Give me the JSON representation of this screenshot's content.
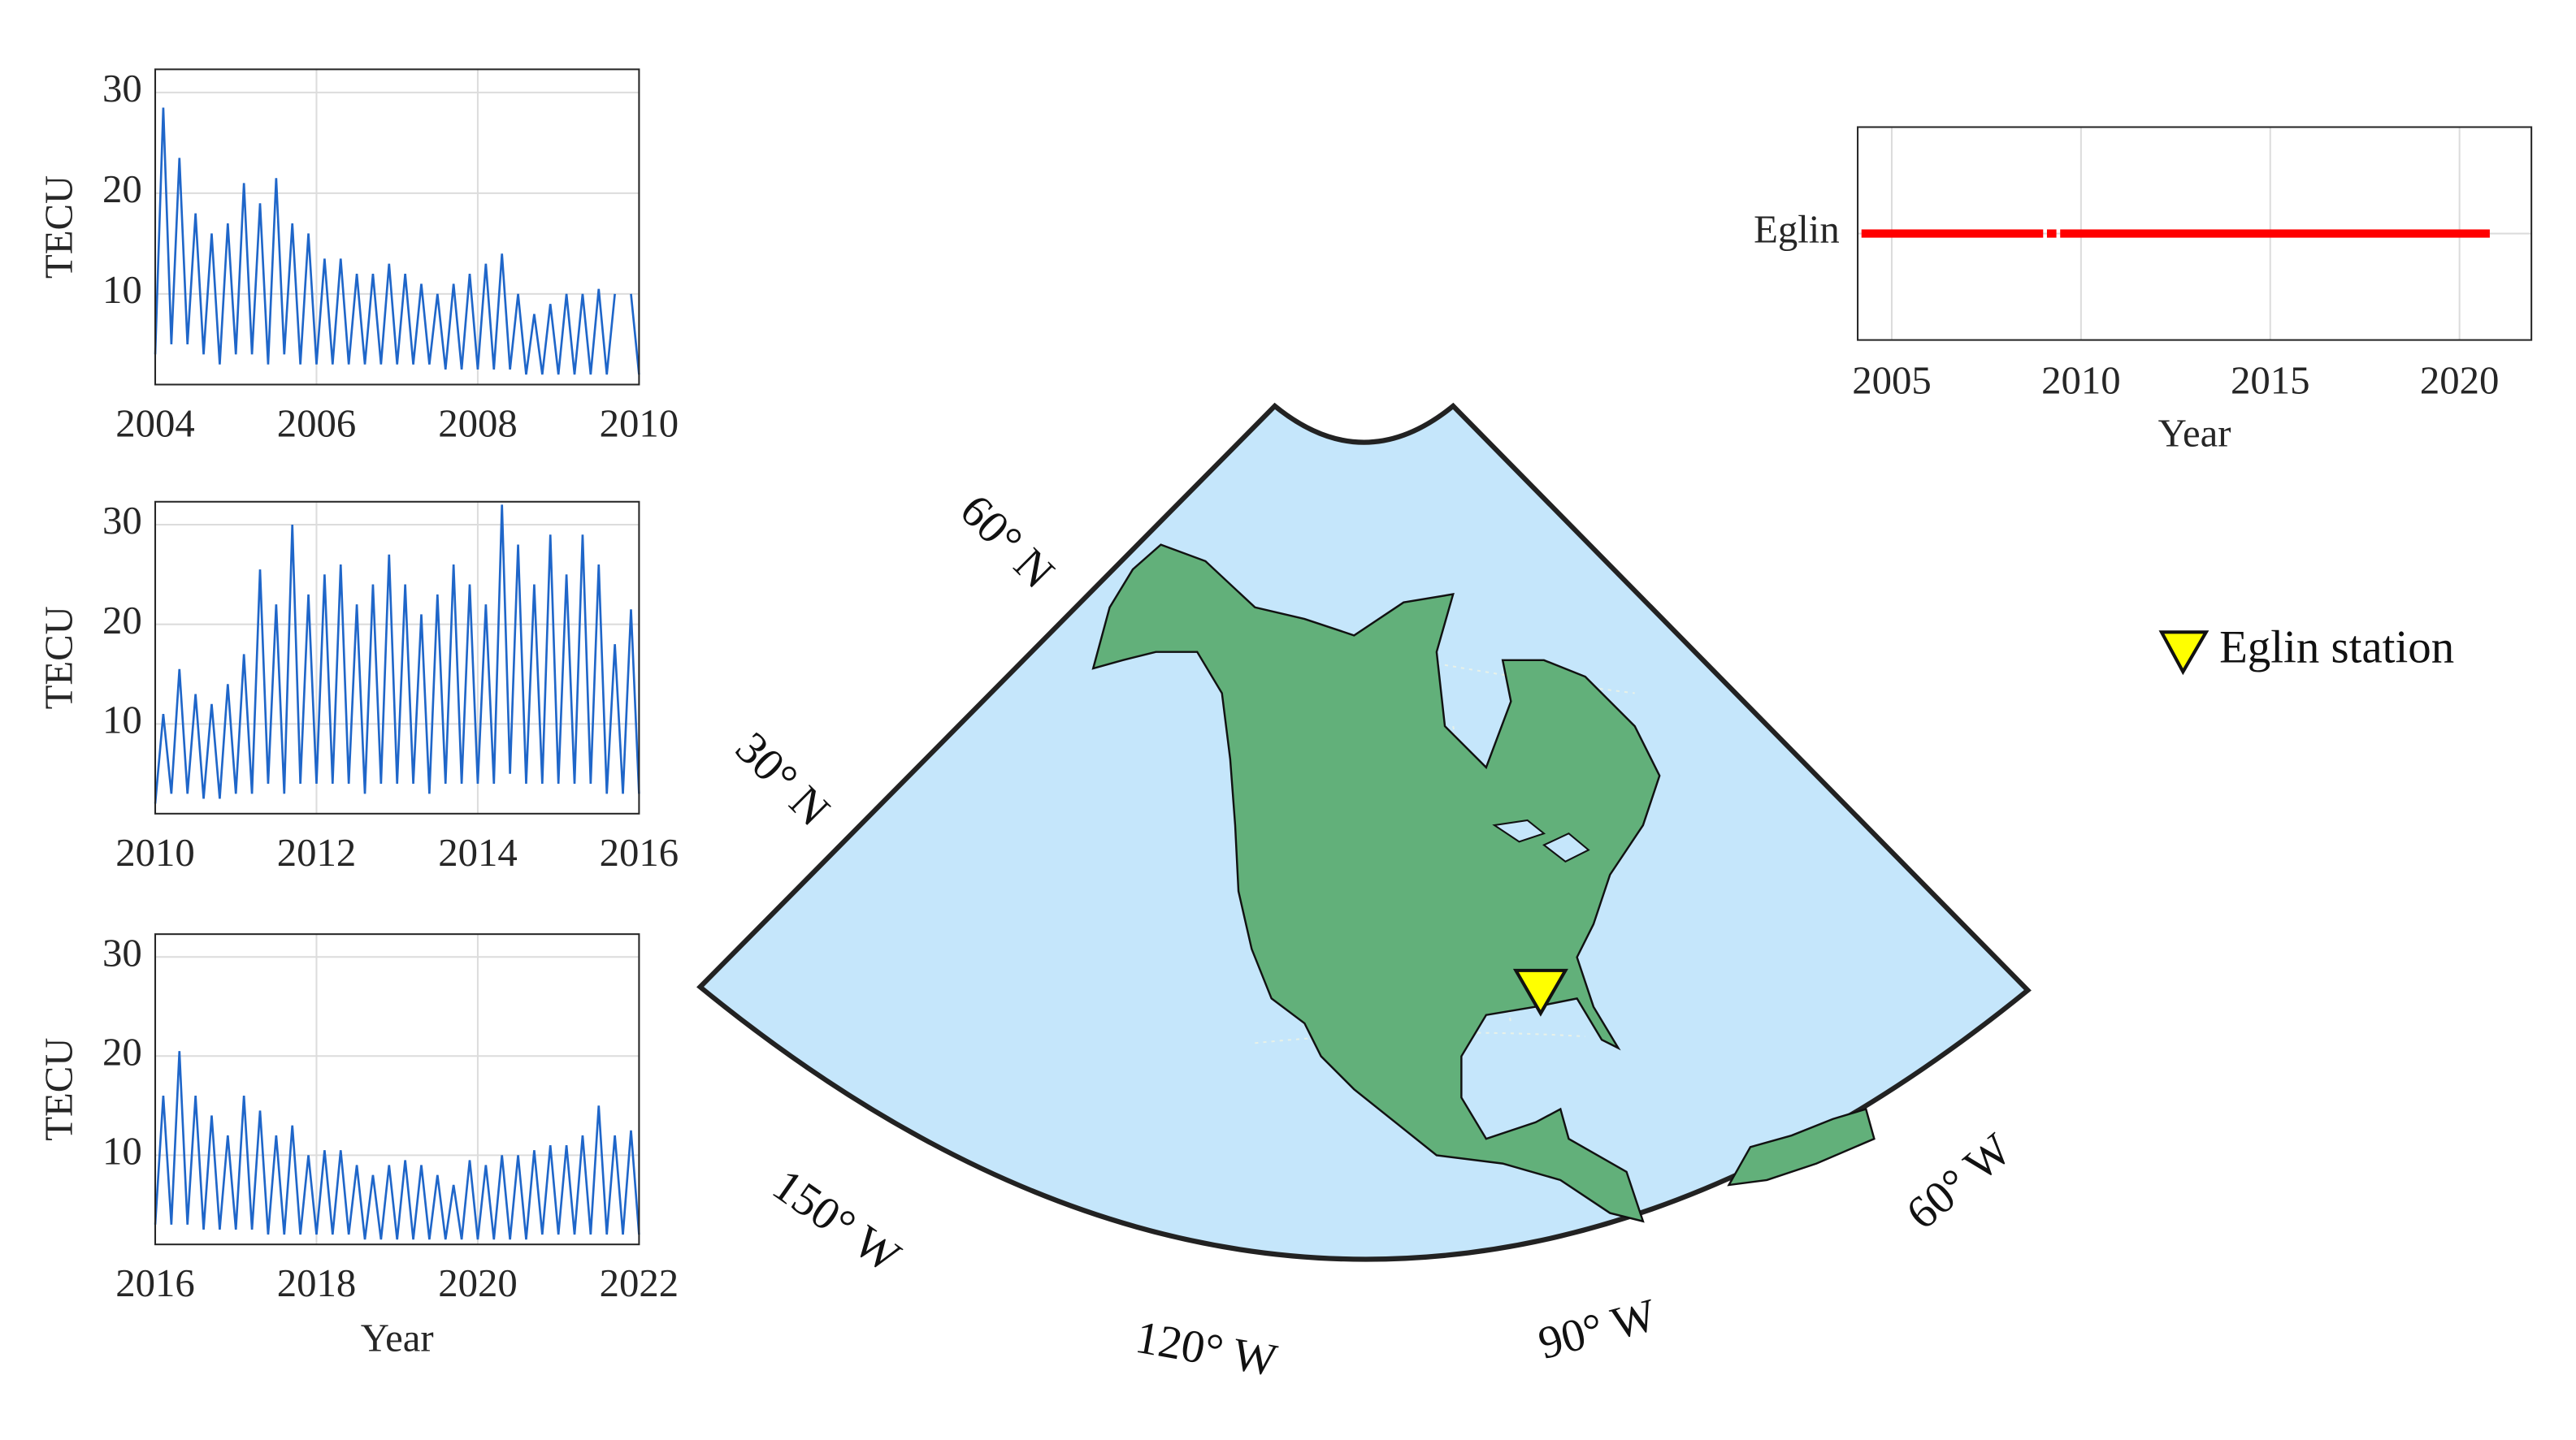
{
  "chart_data": [
    {
      "type": "line",
      "ylabel": "TECU",
      "color": "#1f66c9",
      "x": [
        2004,
        2004.1,
        2004.2,
        2004.3,
        2004.4,
        2004.5,
        2004.6,
        2004.7,
        2004.8,
        2004.9,
        2005,
        2005.1,
        2005.2,
        2005.3,
        2005.4,
        2005.5,
        2005.6,
        2005.7,
        2005.8,
        2005.9,
        2006,
        2006.1,
        2006.2,
        2006.3,
        2006.4,
        2006.5,
        2006.6,
        2006.7,
        2006.8,
        2006.9,
        2007,
        2007.1,
        2007.2,
        2007.3,
        2007.4,
        2007.5,
        2007.6,
        2007.7,
        2007.8,
        2007.9,
        2008,
        2008.1,
        2008.2,
        2008.3,
        2008.4,
        2008.5,
        2008.6,
        2008.7,
        2008.8,
        2008.9,
        2009,
        2009.1,
        2009.2,
        2009.3,
        2009.4,
        2009.5,
        2009.6,
        2009.7,
        2009.8,
        2009.9,
        2010
      ],
      "values": [
        4,
        28.5,
        5,
        23.5,
        5,
        18,
        4,
        16,
        3,
        17,
        4,
        21,
        4,
        19,
        3,
        21.5,
        4,
        17,
        3,
        16,
        3,
        13.5,
        3,
        13.5,
        3,
        12,
        3,
        12,
        3,
        13,
        3,
        12,
        3,
        11,
        3,
        10,
        2.5,
        11,
        2.5,
        12,
        2.5,
        13,
        2.5,
        14,
        2.5,
        10,
        2,
        8,
        2,
        9,
        2,
        10,
        2,
        10,
        2,
        10.5,
        2,
        10,
        null,
        10,
        2
      ],
      "xlim": [
        2004,
        2010
      ],
      "xticks": [
        2004,
        2006,
        2008,
        2010
      ],
      "ylim": [
        1,
        32.3
      ],
      "yticks": [
        10,
        20,
        30
      ],
      "grid": true
    },
    {
      "type": "line",
      "ylabel": "TECU",
      "color": "#1f66c9",
      "x": [
        2010,
        2010.1,
        2010.2,
        2010.3,
        2010.4,
        2010.5,
        2010.6,
        2010.7,
        2010.8,
        2010.9,
        2011,
        2011.1,
        2011.2,
        2011.3,
        2011.4,
        2011.5,
        2011.6,
        2011.7,
        2011.8,
        2011.9,
        2012,
        2012.1,
        2012.2,
        2012.3,
        2012.4,
        2012.5,
        2012.6,
        2012.7,
        2012.8,
        2012.9,
        2013,
        2013.1,
        2013.2,
        2013.3,
        2013.4,
        2013.5,
        2013.6,
        2013.7,
        2013.8,
        2013.9,
        2014,
        2014.1,
        2014.2,
        2014.3,
        2014.4,
        2014.5,
        2014.6,
        2014.7,
        2014.8,
        2014.9,
        2015,
        2015.1,
        2015.2,
        2015.3,
        2015.4,
        2015.5,
        2015.6,
        2015.7,
        2015.8,
        2015.9,
        2016
      ],
      "values": [
        2,
        11,
        3,
        15.5,
        3,
        13,
        2.5,
        12,
        2.5,
        14,
        3,
        17,
        3,
        25.5,
        4,
        22,
        3,
        30,
        4,
        23,
        4,
        25,
        4,
        26,
        4,
        22,
        3,
        24,
        4,
        27,
        4,
        24,
        4,
        21,
        3,
        23,
        4,
        26,
        4,
        24,
        4,
        22,
        4,
        32,
        5,
        28,
        4,
        24,
        4,
        29,
        4,
        25,
        4,
        29,
        4,
        26,
        3,
        18,
        3,
        21.5,
        3
      ],
      "xlim": [
        2010,
        2016
      ],
      "xticks": [
        2010,
        2012,
        2014,
        2016
      ],
      "ylim": [
        1,
        32.3
      ],
      "yticks": [
        10,
        20,
        30
      ],
      "grid": true
    },
    {
      "type": "line",
      "ylabel": "TECU",
      "xlabel": "Year",
      "color": "#1f66c9",
      "x": [
        2016,
        2016.1,
        2016.2,
        2016.3,
        2016.4,
        2016.5,
        2016.6,
        2016.7,
        2016.8,
        2016.9,
        2017,
        2017.1,
        2017.2,
        2017.3,
        2017.4,
        2017.5,
        2017.6,
        2017.7,
        2017.8,
        2017.9,
        2018,
        2018.1,
        2018.2,
        2018.3,
        2018.4,
        2018.5,
        2018.6,
        2018.7,
        2018.8,
        2018.9,
        2019,
        2019.1,
        2019.2,
        2019.3,
        2019.4,
        2019.5,
        2019.6,
        2019.7,
        2019.8,
        2019.9,
        2020,
        2020.1,
        2020.2,
        2020.3,
        2020.4,
        2020.5,
        2020.6,
        2020.7,
        2020.8,
        2020.9,
        2021,
        2021.1,
        2021.2,
        2021.3,
        2021.4,
        2021.5,
        2021.6,
        2021.7,
        2021.8,
        2021.9,
        2022
      ],
      "values": [
        3,
        16,
        3,
        20.5,
        3,
        16,
        2.5,
        14,
        2.5,
        12,
        2.5,
        16,
        2.5,
        14.5,
        2,
        12,
        2,
        13,
        2,
        10,
        2,
        10.5,
        2,
        10.5,
        2,
        9,
        1.5,
        8,
        1.5,
        9,
        1.5,
        9.5,
        1.5,
        9,
        1.5,
        8,
        1.5,
        7,
        1.5,
        9.5,
        1.5,
        9,
        1.5,
        10,
        1.5,
        10,
        1.5,
        10.5,
        2,
        11,
        2,
        11,
        2,
        12,
        2,
        15,
        2,
        12,
        2,
        12.5,
        2
      ],
      "xlim": [
        2016,
        2022
      ],
      "xticks": [
        2016,
        2018,
        2020,
        2022
      ],
      "ylim": [
        1,
        32.3
      ],
      "yticks": [
        10,
        20,
        30
      ],
      "grid": true
    },
    {
      "type": "timeline",
      "categories": [
        "Eglin"
      ],
      "xlabel": "Year",
      "color": "#ff0000",
      "segments": [
        [
          2004.2,
          2009.0
        ],
        [
          2009.1,
          2009.35
        ],
        [
          2009.45,
          2020.8
        ]
      ],
      "xlim": [
        2004.1,
        2021.9
      ],
      "xticks": [
        2005,
        2010,
        2015,
        2020
      ],
      "grid": true
    }
  ],
  "map": {
    "labels": [
      "60° N",
      "30° N",
      "150° W",
      "120° W",
      "90° W",
      "60° W"
    ],
    "legend": "Eglin station"
  }
}
